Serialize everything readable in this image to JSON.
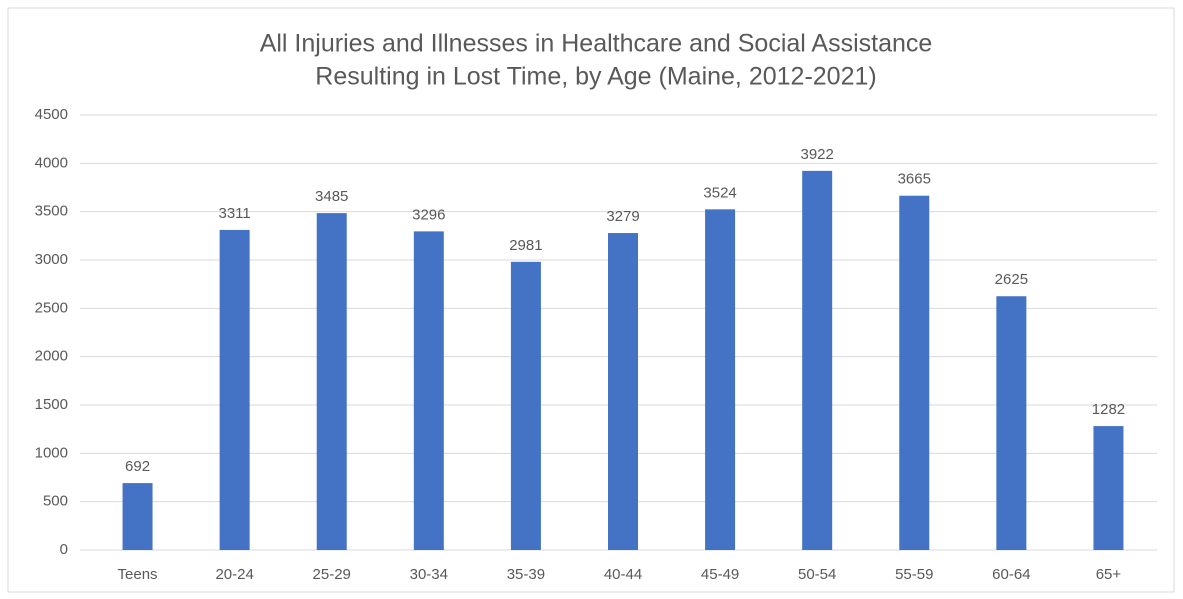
{
  "chart_data": {
    "type": "bar",
    "title": [
      "All Injuries and Illnesses in Healthcare and Social Assistance",
      "Resulting in Lost Time, by Age (Maine, 2012-2021)"
    ],
    "categories": [
      "Teens",
      "20-24",
      "25-29",
      "30-34",
      "35-39",
      "40-44",
      "45-49",
      "50-54",
      "55-59",
      "60-64",
      "65+"
    ],
    "values": [
      692,
      3311,
      3485,
      3296,
      2981,
      3279,
      3524,
      3922,
      3665,
      2625,
      1282
    ],
    "color": "#4472c4",
    "ylim": [
      0,
      4500
    ],
    "yticks": [
      0,
      500,
      1000,
      1500,
      2000,
      2500,
      3000,
      3500,
      4000,
      4500
    ],
    "grid": true
  }
}
